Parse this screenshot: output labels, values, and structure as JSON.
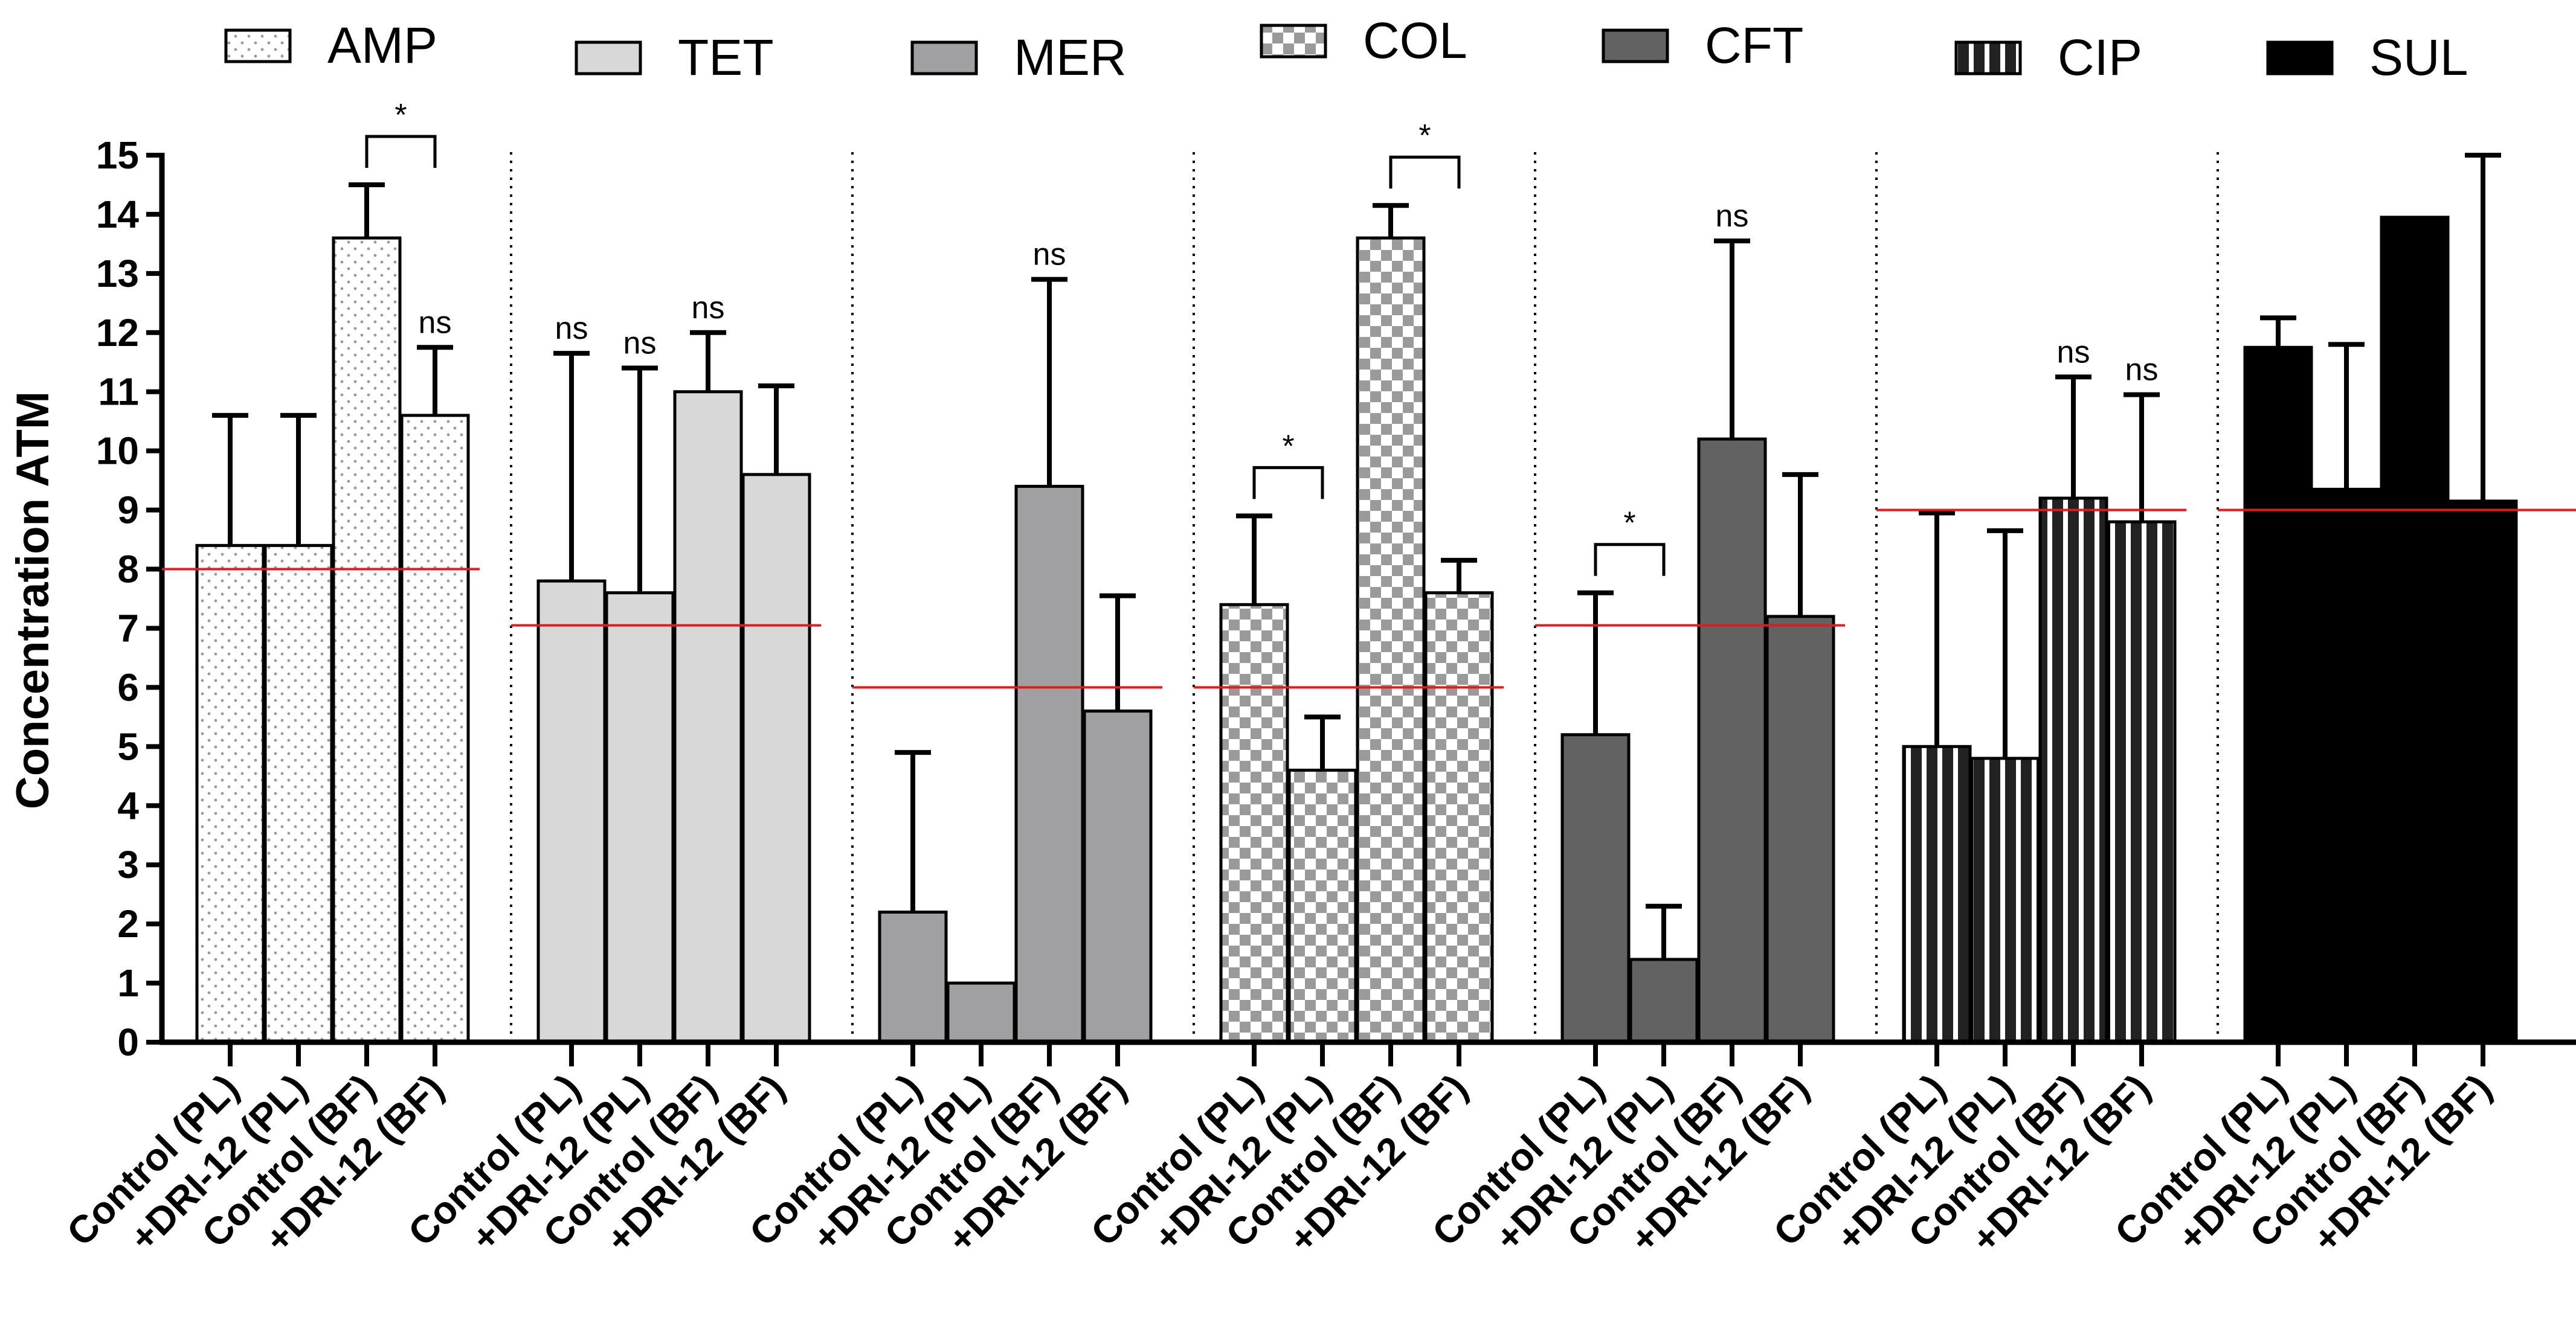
{
  "chart_data": {
    "type": "bar",
    "ylabel": "Concentration ATM",
    "ylim": [
      0,
      15
    ],
    "yticks": [
      "0",
      "1",
      "2",
      "3",
      "4",
      "5",
      "6",
      "7",
      "8",
      "9",
      "10",
      "11",
      "12",
      "13",
      "14",
      "15"
    ],
    "categories": [
      "Control (PL)",
      "+DRI-12 (PL)",
      "Control (BF)",
      "+DRI-12 (BF)"
    ],
    "groups": [
      {
        "name": "AMP",
        "fill": "#ffffff",
        "pattern": "dots",
        "values": [
          8.4,
          8.4,
          13.6,
          10.6
        ],
        "errors": [
          10.6,
          10.6,
          14.5,
          11.75
        ],
        "threshold": 8.0,
        "annotations": [
          {
            "type": "ns",
            "bar": 3,
            "label": "ns"
          }
        ],
        "brackets": [
          {
            "from": 2,
            "to": 3,
            "label": "*"
          }
        ]
      },
      {
        "name": "TET",
        "fill": "#d8d8d8",
        "pattern": "solid",
        "values": [
          7.8,
          7.6,
          11.0,
          9.6
        ],
        "errors": [
          11.65,
          11.4,
          12.0,
          11.1
        ],
        "threshold": 7.05,
        "annotations": [
          {
            "type": "ns",
            "bar": 0,
            "label": "ns"
          },
          {
            "type": "ns",
            "bar": 1,
            "label": "ns"
          },
          {
            "type": "ns",
            "bar": 2,
            "label": "ns"
          }
        ],
        "brackets": []
      },
      {
        "name": "MER",
        "fill": "#a0a0a3",
        "pattern": "solid",
        "values": [
          2.2,
          1.0,
          9.4,
          5.6
        ],
        "errors": [
          4.9,
          1.0,
          12.9,
          7.55
        ],
        "threshold": 6.0,
        "annotations": [
          {
            "type": "ns",
            "bar": 2,
            "label": "ns"
          }
        ],
        "brackets": []
      },
      {
        "name": "COL",
        "fill": "#ffffff",
        "pattern": "checker",
        "values": [
          7.4,
          4.6,
          13.6,
          7.6
        ],
        "errors": [
          8.9,
          5.5,
          14.15,
          8.15
        ],
        "threshold": 6.0,
        "annotations": [],
        "brackets": [
          {
            "from": 0,
            "to": 1,
            "label": "*"
          },
          {
            "from": 2,
            "to": 3,
            "label": "*"
          }
        ]
      },
      {
        "name": "CFT",
        "fill": "#626262",
        "pattern": "solid",
        "values": [
          5.2,
          1.4,
          10.2,
          7.2
        ],
        "errors": [
          7.6,
          2.3,
          13.55,
          9.6
        ],
        "threshold": 7.05,
        "annotations": [
          {
            "type": "ns",
            "bar": 2,
            "label": "ns"
          }
        ],
        "brackets": [
          {
            "from": 0,
            "to": 1,
            "label": "*"
          }
        ]
      },
      {
        "name": "CIP",
        "fill": "#3a3a3a",
        "pattern": "stripes",
        "values": [
          5.0,
          4.8,
          9.2,
          8.8
        ],
        "errors": [
          8.95,
          8.65,
          11.25,
          10.95
        ],
        "threshold": 9.0,
        "annotations": [
          {
            "type": "ns",
            "bar": 2,
            "label": "ns"
          },
          {
            "type": "ns",
            "bar": 3,
            "label": "ns"
          }
        ],
        "brackets": []
      },
      {
        "name": "SUL",
        "fill": "#000000",
        "pattern": "solid",
        "values": [
          11.75,
          9.35,
          13.95,
          9.15
        ],
        "errors": [
          12.25,
          11.8,
          13.95,
          15.0
        ],
        "threshold": 9.0,
        "annotations": [],
        "brackets": []
      }
    ],
    "legend": [
      "AMP",
      "TET",
      "MER",
      "COL",
      "CFT",
      "CIP",
      "SUL"
    ],
    "threshold_color": "#e41a1c"
  }
}
